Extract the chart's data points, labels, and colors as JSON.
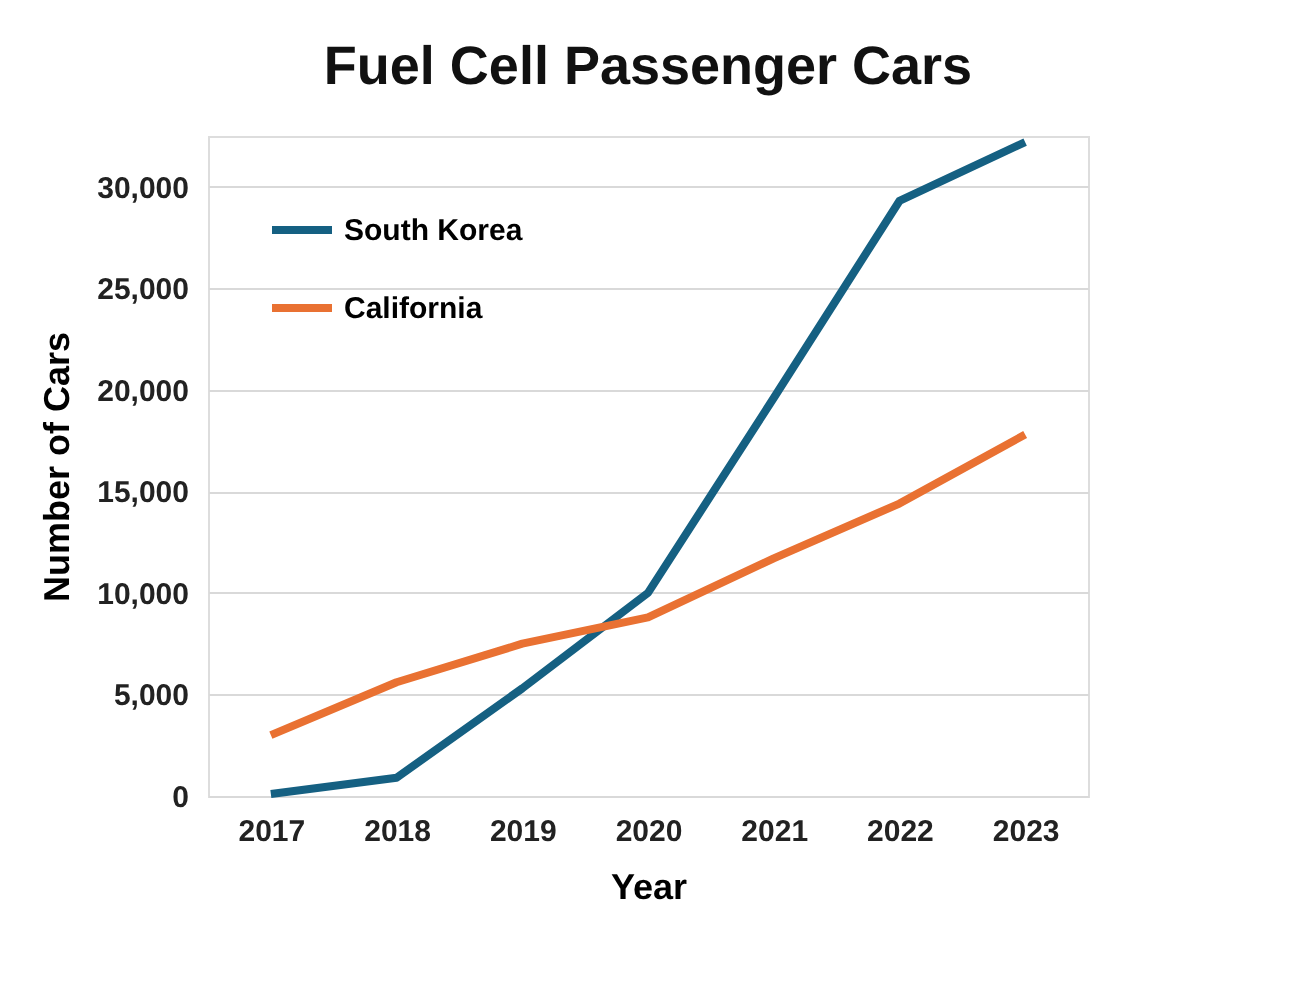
{
  "chart_data": {
    "type": "line",
    "title": "Fuel Cell Passenger Cars",
    "xlabel": "Year",
    "ylabel": "Number of Cars",
    "categories": [
      "2017",
      "2018",
      "2019",
      "2020",
      "2021",
      "2022",
      "2023"
    ],
    "series": [
      {
        "name": "South Korea",
        "color": "#156082",
        "values": [
          100,
          900,
          5300,
          10000,
          19600,
          29300,
          32200
        ]
      },
      {
        "name": "California",
        "color": "#e97132",
        "values": [
          3000,
          5600,
          7500,
          8800,
          11700,
          14400,
          17800
        ]
      }
    ],
    "ylim": [
      0,
      32500
    ],
    "yticks": [
      {
        "value": 0,
        "label": "0"
      },
      {
        "value": 5000,
        "label": "5,000"
      },
      {
        "value": 10000,
        "label": "10,000"
      },
      {
        "value": 15000,
        "label": "15,000"
      },
      {
        "value": 20000,
        "label": "20,000"
      },
      {
        "value": 25000,
        "label": "25,000"
      },
      {
        "value": 30000,
        "label": "30,000"
      }
    ],
    "grid": "y",
    "legend": "top left",
    "line_style": "solid"
  }
}
